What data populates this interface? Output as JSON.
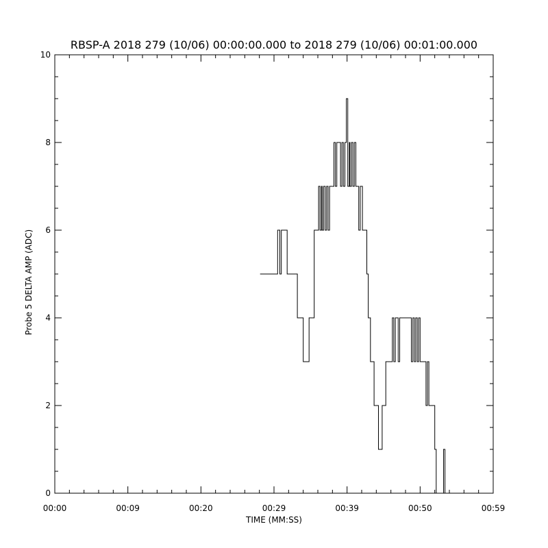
{
  "chart_data": {
    "type": "line",
    "title": "RBSP-A 2018 279 (10/06) 00:00:00.000 to 2018 279 (10/06) 00:01:00.000",
    "xlabel": "TIME (MM:SS)",
    "ylabel": "Probe 5 DELTA AMP (ADC)",
    "x_unit": "seconds",
    "xlim": [
      0,
      60
    ],
    "ylim": [
      0,
      10
    ],
    "xticks": [
      {
        "value": 0,
        "label": "00:00"
      },
      {
        "value": 10,
        "label": "00:09"
      },
      {
        "value": 20,
        "label": "00:20"
      },
      {
        "value": 30,
        "label": "00:29"
      },
      {
        "value": 40,
        "label": "00:39"
      },
      {
        "value": 50,
        "label": "00:50"
      },
      {
        "value": 60,
        "label": "00:59"
      }
    ],
    "yticks": [
      {
        "value": 0,
        "label": "0"
      },
      {
        "value": 2,
        "label": "2"
      },
      {
        "value": 4,
        "label": "4"
      },
      {
        "value": 6,
        "label": "6"
      },
      {
        "value": 8,
        "label": "8"
      },
      {
        "value": 10,
        "label": "10"
      }
    ],
    "grid": false,
    "line_color": "#000000",
    "series": [
      {
        "step": true,
        "x": [
          28.1,
          30.5,
          30.8,
          31.0,
          31.2,
          31.8,
          32.0,
          33.2,
          33.4,
          34.0,
          34.6,
          34.8,
          35.0,
          35.5,
          36.1,
          36.3,
          36.5,
          36.6,
          36.8,
          37.0,
          37.2,
          37.4,
          37.6,
          37.8,
          38.0,
          38.2,
          38.4,
          38.6,
          39.1,
          39.3,
          39.5,
          39.7,
          39.9,
          40.1,
          40.3,
          40.4,
          40.6,
          40.8,
          41.0,
          41.2,
          41.4,
          41.6,
          41.8,
          42.1,
          42.3,
          42.5,
          42.7,
          42.9,
          43.2,
          43.5,
          43.7,
          44.3,
          44.5,
          44.8,
          45.3,
          45.6,
          45.8,
          46.2,
          46.4,
          46.6,
          47.0,
          47.2,
          47.4,
          48.0,
          48.6,
          48.8,
          49.0,
          49.2,
          49.4,
          49.6,
          49.8,
          50.0,
          50.2,
          50.6,
          50.8,
          51.0,
          51.2,
          51.4,
          51.6,
          51.8,
          52.0,
          52.2,
          52.5,
          52.7,
          53.0,
          53.2,
          53.4,
          53.6,
          53.8,
          54.1,
          54.5,
          54.8,
          55.3,
          55.5
        ],
        "y": [
          5,
          6,
          5,
          6,
          6,
          5,
          5,
          4,
          4,
          3,
          3,
          4,
          4,
          6,
          7,
          6,
          7,
          6,
          7,
          6,
          7,
          6,
          7,
          7,
          7,
          8,
          7,
          8,
          7,
          8,
          7,
          8,
          9,
          7,
          8,
          7,
          8,
          7,
          8,
          7,
          7,
          6,
          7,
          6,
          6,
          6,
          5,
          4,
          3,
          3,
          2,
          1,
          1,
          2,
          3,
          3,
          3,
          4,
          3,
          4,
          3,
          4,
          4,
          4,
          4,
          3,
          4,
          3,
          4,
          3,
          4,
          3,
          3,
          3,
          2,
          3,
          2,
          2,
          2,
          2,
          1,
          0,
          0,
          0,
          0,
          1,
          0,
          0,
          0,
          0,
          0,
          0,
          0,
          0
        ]
      }
    ]
  }
}
